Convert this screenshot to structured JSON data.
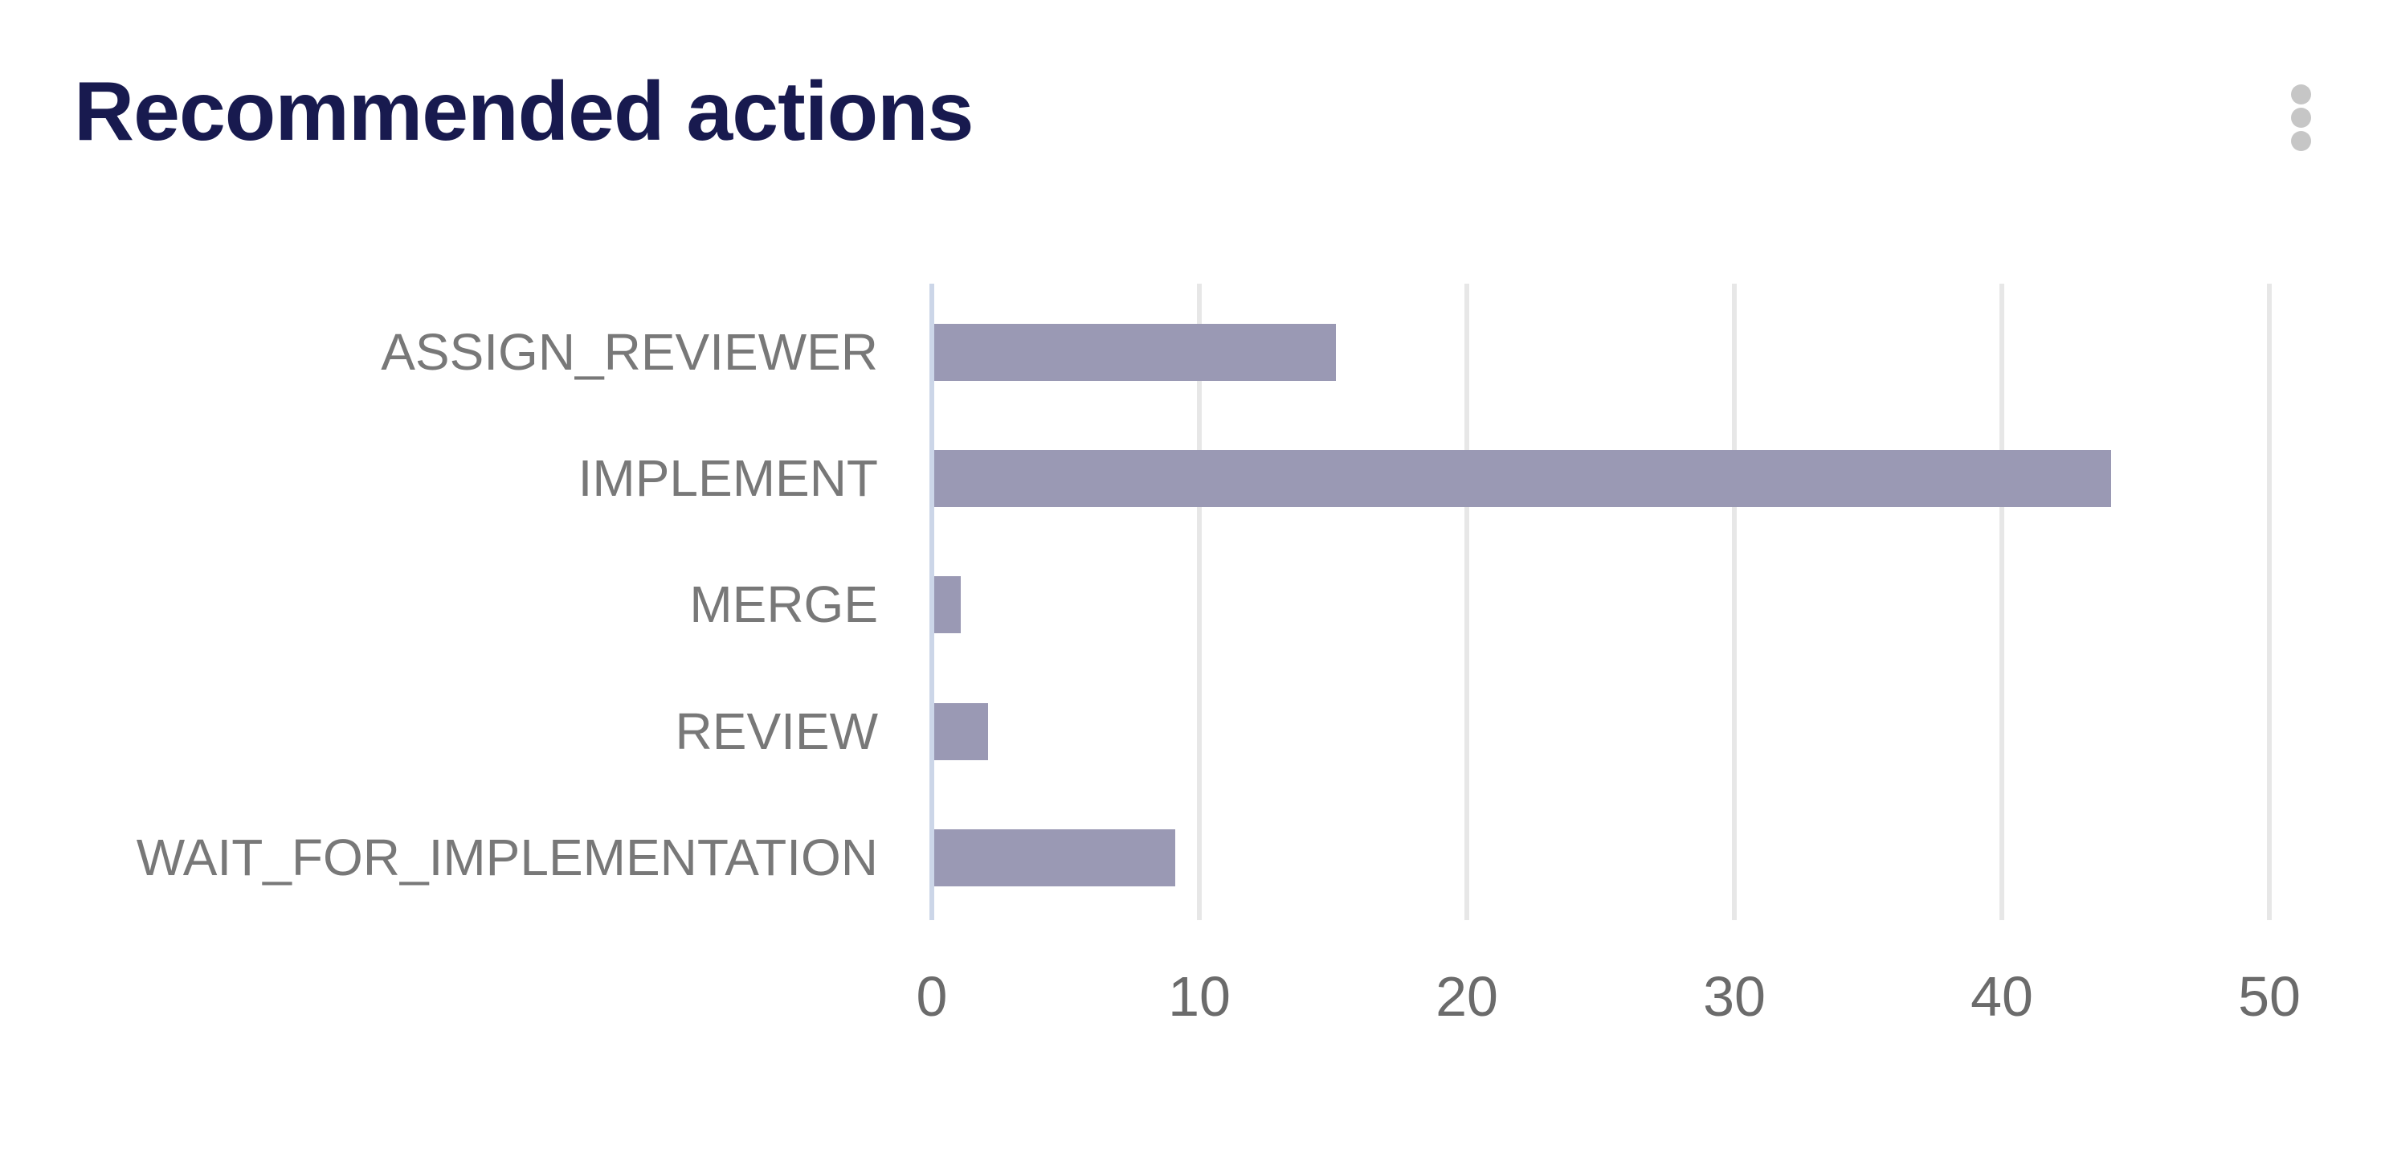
{
  "header": {
    "title": "Recommended actions",
    "menu_icon": "kebab-vertical-icon"
  },
  "colors": {
    "title": "#181a4f",
    "bar": "#9a99b4",
    "axis_line": "#ccd6e8",
    "gridline": "#e7e7e7",
    "category_label": "#787878",
    "tick_label": "#6b6b6b",
    "kebab_dot": "#c6c6c6",
    "background": "#ffffff"
  },
  "chart_data": {
    "type": "bar",
    "orientation": "horizontal",
    "title": "Recommended actions",
    "categories": [
      "ASSIGN_REVIEWER",
      "IMPLEMENT",
      "MERGE",
      "REVIEW",
      "WAIT_FOR_IMPLEMENTATION"
    ],
    "values": [
      15,
      44,
      1,
      2,
      9
    ],
    "xlabel": "",
    "ylabel": "",
    "xlim": [
      0,
      50
    ],
    "xticks": [
      0,
      10,
      20,
      30,
      40,
      50
    ],
    "grid": true,
    "legend": false
  }
}
